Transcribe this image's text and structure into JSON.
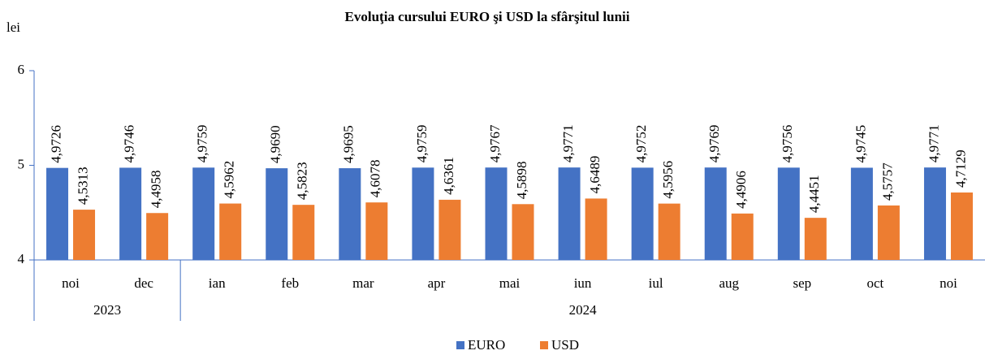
{
  "chart_data": {
    "type": "bar",
    "title": "Evoluţia  cursului EURO  şi  USD la sfârşitul lunii",
    "y_axis_label": "lei",
    "categories": [
      "noi",
      "dec",
      "ian",
      "feb",
      "mar",
      "apr",
      "mai",
      "iun",
      "iul",
      "aug",
      "sep",
      "oct",
      "noi"
    ],
    "x_groups": [
      {
        "label": "2023",
        "count": 2
      },
      {
        "label": "2024",
        "count": 11
      }
    ],
    "series": [
      {
        "name": "EURO",
        "color": "#4472c4",
        "values": [
          4.9726,
          4.9746,
          4.9759,
          4.969,
          4.9695,
          4.9759,
          4.9767,
          4.9771,
          4.9752,
          4.9769,
          4.9756,
          4.9745,
          4.9771
        ],
        "value_labels": [
          "4,9726",
          "4,9746",
          "4,9759",
          "4,9690",
          "4,9695",
          "4,9759",
          "4,9767",
          "4,9771",
          "4,9752",
          "4,9769",
          "4,9756",
          "4,9745",
          "4,9771"
        ]
      },
      {
        "name": "USD",
        "color": "#ed7d31",
        "values": [
          4.5313,
          4.4958,
          4.5962,
          4.5823,
          4.6078,
          4.6361,
          4.5898,
          4.6489,
          4.5956,
          4.4906,
          4.4451,
          4.5757,
          4.7129
        ],
        "value_labels": [
          "4,5313",
          "4,4958",
          "4,5962",
          "4,5823",
          "4,6078",
          "4,6361",
          "4,5898",
          "4,6489",
          "4,5956",
          "4,4906",
          "4,4451",
          "4,5757",
          "4,7129"
        ]
      }
    ],
    "ylim": [
      4,
      6
    ],
    "yticks": [
      4,
      5,
      6
    ],
    "legend": "bottom"
  }
}
